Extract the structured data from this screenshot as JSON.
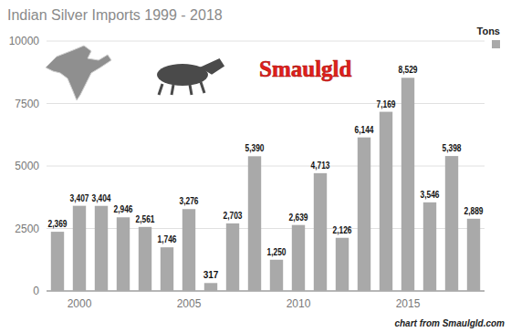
{
  "chart_data": {
    "type": "bar",
    "title": "Indian Silver Imports 1999 - 2018",
    "annotations": [
      "Smaulgld",
      "chart from Smaulgld.com"
    ],
    "x": [
      1999,
      2000,
      2001,
      2002,
      2003,
      2004,
      2005,
      2006,
      2007,
      2008,
      2009,
      2010,
      2011,
      2012,
      2013,
      2014,
      2015,
      2016,
      2017,
      2018
    ],
    "series": [
      {
        "name": "Tons",
        "color": "#a9a9a9",
        "values": [
          2369,
          3407,
          3404,
          2946,
          2561,
          1746,
          3276,
          317,
          2703,
          5390,
          1250,
          2639,
          4713,
          2126,
          6144,
          7169,
          8529,
          3546,
          5398,
          2889
        ],
        "value_labels": [
          "2,369",
          "3,407",
          "3,404",
          "2,946",
          "2,561",
          "1,746",
          "3,276",
          "317",
          "2,703",
          "5,390",
          "1,250",
          "2,639",
          "4,713",
          "2,126",
          "6,144",
          "7,169",
          "8,529",
          "3,546",
          "5,398",
          "2,889"
        ]
      }
    ],
    "xlim": [
      1998.5,
      2018.5
    ],
    "xticks": [
      2000,
      2005,
      2010,
      2015
    ],
    "ylim": [
      0,
      10000
    ],
    "yticks": [
      0,
      2500,
      5000,
      7500,
      10000
    ],
    "grid": true,
    "legend": "top-right",
    "data_labels": true
  }
}
